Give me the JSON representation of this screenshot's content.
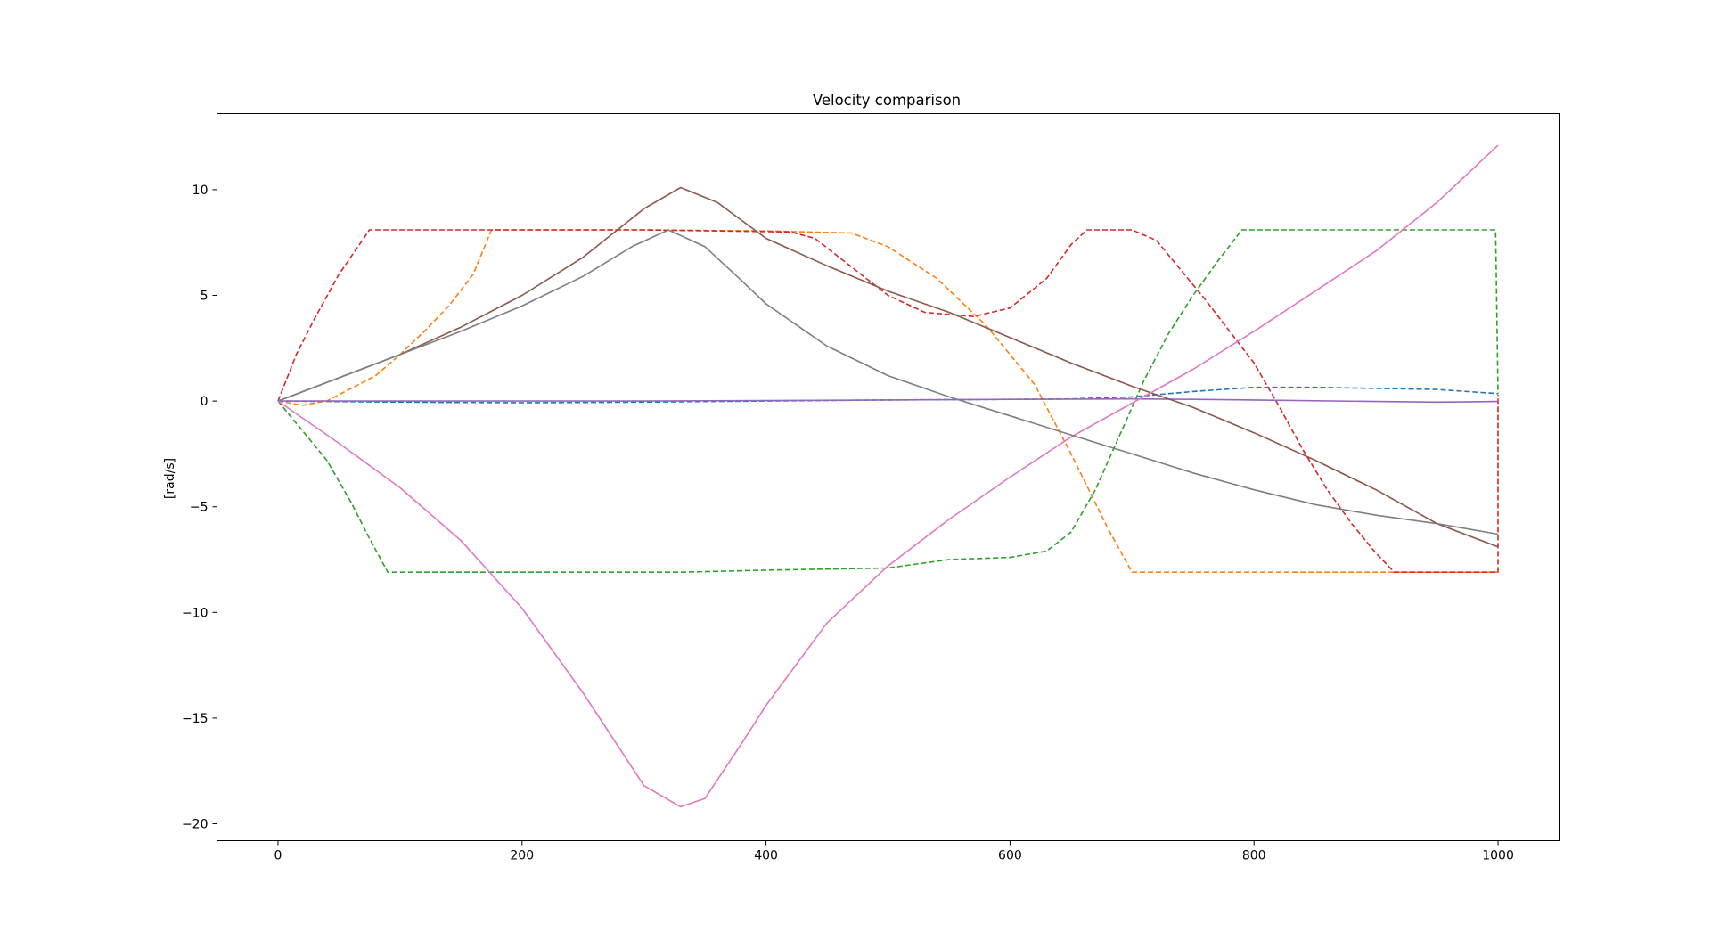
{
  "chart_data": {
    "type": "line",
    "title": "Velocity comparison",
    "xlabel": "",
    "ylabel": "[rad/s]",
    "xlim": [
      -50,
      1050
    ],
    "ylim": [
      -20.8,
      13.6
    ],
    "xticks": [
      0,
      200,
      400,
      600,
      800,
      1000
    ],
    "yticks": [
      -20,
      -15,
      -10,
      -5,
      0,
      5,
      10
    ],
    "xtick_labels": [
      "0",
      "200",
      "400",
      "600",
      "800",
      "1000"
    ],
    "ytick_labels": [
      "−20",
      "−15",
      "−10",
      "−5",
      "0",
      "5",
      "10"
    ],
    "grid": false,
    "legend": "none",
    "series": [
      {
        "color": "#1f77b4",
        "style": "dashed",
        "points": [
          [
            0,
            0
          ],
          [
            100,
            -0.05
          ],
          [
            200,
            -0.08
          ],
          [
            300,
            -0.05
          ],
          [
            400,
            0
          ],
          [
            500,
            0.05
          ],
          [
            600,
            0.08
          ],
          [
            650,
            0.1
          ],
          [
            700,
            0.2
          ],
          [
            750,
            0.45
          ],
          [
            800,
            0.65
          ],
          [
            850,
            0.65
          ],
          [
            900,
            0.6
          ],
          [
            950,
            0.55
          ],
          [
            1000,
            0.35
          ]
        ]
      },
      {
        "color": "#ff7f0e",
        "style": "dashed",
        "points": [
          [
            0,
            0
          ],
          [
            20,
            -0.2
          ],
          [
            40,
            0
          ],
          [
            60,
            0.6
          ],
          [
            80,
            1.2
          ],
          [
            100,
            2.2
          ],
          [
            120,
            3.3
          ],
          [
            140,
            4.5
          ],
          [
            160,
            6.0
          ],
          [
            175,
            8.1
          ],
          [
            300,
            8.1
          ],
          [
            400,
            8.05
          ],
          [
            470,
            7.95
          ],
          [
            500,
            7.3
          ],
          [
            540,
            5.8
          ],
          [
            580,
            3.6
          ],
          [
            620,
            0.8
          ],
          [
            650,
            -2.5
          ],
          [
            680,
            -6.0
          ],
          [
            700,
            -8.1
          ],
          [
            1000,
            -8.1
          ]
        ]
      },
      {
        "color": "#2ca02c",
        "style": "dashed",
        "points": [
          [
            0,
            0
          ],
          [
            20,
            -1.4
          ],
          [
            40,
            -2.8
          ],
          [
            60,
            -4.8
          ],
          [
            75,
            -6.5
          ],
          [
            90,
            -8.1
          ],
          [
            200,
            -8.1
          ],
          [
            330,
            -8.1
          ],
          [
            400,
            -8.0
          ],
          [
            450,
            -7.95
          ],
          [
            500,
            -7.9
          ],
          [
            550,
            -7.5
          ],
          [
            600,
            -7.4
          ],
          [
            630,
            -7.1
          ],
          [
            650,
            -6.2
          ],
          [
            670,
            -4.2
          ],
          [
            690,
            -1.6
          ],
          [
            710,
            1.0
          ],
          [
            730,
            3.2
          ],
          [
            750,
            5.0
          ],
          [
            770,
            6.6
          ],
          [
            790,
            8.1
          ],
          [
            998,
            8.1
          ],
          [
            1000,
            0.35
          ]
        ]
      },
      {
        "color": "#d62728",
        "style": "dashed",
        "points": [
          [
            0,
            0
          ],
          [
            15,
            2.2
          ],
          [
            30,
            3.9
          ],
          [
            50,
            6.0
          ],
          [
            75,
            8.1
          ],
          [
            200,
            8.1
          ],
          [
            300,
            8.1
          ],
          [
            420,
            8.0
          ],
          [
            440,
            7.7
          ],
          [
            460,
            6.8
          ],
          [
            480,
            5.9
          ],
          [
            500,
            5.0
          ],
          [
            530,
            4.2
          ],
          [
            570,
            4.0
          ],
          [
            600,
            4.4
          ],
          [
            630,
            5.8
          ],
          [
            650,
            7.4
          ],
          [
            663,
            8.1
          ],
          [
            700,
            8.1
          ],
          [
            720,
            7.6
          ],
          [
            740,
            6.2
          ],
          [
            760,
            4.8
          ],
          [
            780,
            3.3
          ],
          [
            800,
            1.8
          ],
          [
            820,
            -0.2
          ],
          [
            840,
            -2.3
          ],
          [
            860,
            -4.2
          ],
          [
            880,
            -5.8
          ],
          [
            900,
            -7.2
          ],
          [
            915,
            -8.1
          ],
          [
            1000,
            -8.1
          ],
          [
            1000,
            0.3
          ]
        ]
      },
      {
        "color": "#9467bd",
        "style": "solid",
        "points": [
          [
            0,
            0
          ],
          [
            100,
            0
          ],
          [
            200,
            0
          ],
          [
            300,
            0
          ],
          [
            400,
            0.02
          ],
          [
            500,
            0.05
          ],
          [
            600,
            0.08
          ],
          [
            700,
            0.1
          ],
          [
            750,
            0.08
          ],
          [
            800,
            0.05
          ],
          [
            900,
            -0.02
          ],
          [
            950,
            -0.05
          ],
          [
            1000,
            -0.02
          ]
        ]
      },
      {
        "color": "#8c564b",
        "style": "solid",
        "points": [
          [
            0,
            0
          ],
          [
            50,
            1.1
          ],
          [
            100,
            2.2
          ],
          [
            150,
            3.5
          ],
          [
            200,
            5.0
          ],
          [
            250,
            6.8
          ],
          [
            300,
            9.1
          ],
          [
            330,
            10.1
          ],
          [
            360,
            9.4
          ],
          [
            400,
            7.7
          ],
          [
            450,
            6.4
          ],
          [
            500,
            5.2
          ],
          [
            550,
            4.2
          ],
          [
            600,
            3.0
          ],
          [
            650,
            1.8
          ],
          [
            700,
            0.7
          ],
          [
            750,
            -0.3
          ],
          [
            800,
            -1.5
          ],
          [
            850,
            -2.8
          ],
          [
            900,
            -4.2
          ],
          [
            950,
            -5.8
          ],
          [
            1000,
            -6.9
          ]
        ]
      },
      {
        "color": "#e377c2",
        "style": "solid",
        "points": [
          [
            0,
            0
          ],
          [
            50,
            -2.0
          ],
          [
            100,
            -4.1
          ],
          [
            150,
            -6.6
          ],
          [
            200,
            -9.8
          ],
          [
            250,
            -13.8
          ],
          [
            300,
            -18.2
          ],
          [
            330,
            -19.2
          ],
          [
            350,
            -18.8
          ],
          [
            380,
            -16.2
          ],
          [
            400,
            -14.4
          ],
          [
            450,
            -10.5
          ],
          [
            500,
            -7.8
          ],
          [
            550,
            -5.6
          ],
          [
            600,
            -3.6
          ],
          [
            650,
            -1.7
          ],
          [
            700,
            -0.1
          ],
          [
            750,
            1.5
          ],
          [
            800,
            3.3
          ],
          [
            850,
            5.2
          ],
          [
            900,
            7.1
          ],
          [
            950,
            9.4
          ],
          [
            1000,
            12.1
          ]
        ]
      },
      {
        "color": "#7f7f7f",
        "style": "solid",
        "points": [
          [
            0,
            0
          ],
          [
            50,
            1.1
          ],
          [
            100,
            2.2
          ],
          [
            150,
            3.3
          ],
          [
            200,
            4.5
          ],
          [
            250,
            5.9
          ],
          [
            290,
            7.3
          ],
          [
            320,
            8.1
          ],
          [
            350,
            7.3
          ],
          [
            380,
            5.7
          ],
          [
            400,
            4.6
          ],
          [
            450,
            2.6
          ],
          [
            500,
            1.2
          ],
          [
            550,
            0.2
          ],
          [
            600,
            -0.7
          ],
          [
            650,
            -1.6
          ],
          [
            700,
            -2.5
          ],
          [
            750,
            -3.4
          ],
          [
            800,
            -4.2
          ],
          [
            850,
            -4.9
          ],
          [
            900,
            -5.4
          ],
          [
            950,
            -5.8
          ],
          [
            1000,
            -6.3
          ]
        ]
      }
    ]
  }
}
